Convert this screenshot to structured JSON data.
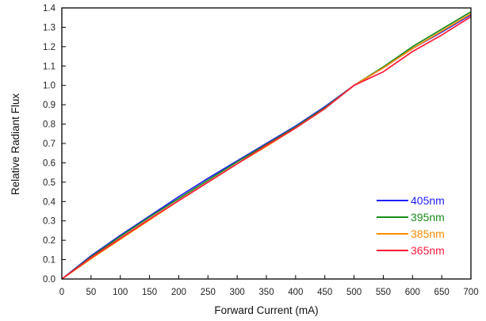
{
  "chart_data": {
    "type": "line",
    "title": "",
    "xlabel": "Forward Current (mA)",
    "ylabel": "Relative Radiant Flux",
    "xlim": [
      0,
      700
    ],
    "ylim": [
      0,
      1.4
    ],
    "x_ticks": [
      "0",
      "50",
      "100",
      "150",
      "200",
      "250",
      "300",
      "350",
      "400",
      "450",
      "500",
      "550",
      "600",
      "650",
      "700"
    ],
    "y_ticks": [
      "0.0",
      "0.1",
      "0.2",
      "0.3",
      "0.4",
      "0.5",
      "0.6",
      "0.7",
      "0.8",
      "0.9",
      "1.0",
      "1.1",
      "1.2",
      "1.3",
      "1.4"
    ],
    "grid": false,
    "legend_position": "bottom-right",
    "x": [
      0,
      50,
      100,
      150,
      200,
      250,
      300,
      350,
      400,
      450,
      500,
      550,
      600,
      650,
      700
    ],
    "series": [
      {
        "name": "405nm",
        "color": "#1f1fff",
        "values": [
          0.0,
          0.12,
          0.225,
          0.325,
          0.425,
          0.52,
          0.61,
          0.7,
          0.79,
          0.89,
          1.0,
          1.09,
          1.19,
          1.275,
          1.365
        ]
      },
      {
        "name": "395nm",
        "color": "#1a8c1a",
        "values": [
          0.0,
          0.115,
          0.22,
          0.32,
          0.415,
          0.51,
          0.605,
          0.695,
          0.785,
          0.885,
          1.0,
          1.095,
          1.2,
          1.29,
          1.38
        ]
      },
      {
        "name": "385nm",
        "color": "#ff8c00",
        "values": [
          0.0,
          0.105,
          0.205,
          0.305,
          0.405,
          0.5,
          0.595,
          0.685,
          0.78,
          0.88,
          1.0,
          1.09,
          1.19,
          1.28,
          1.37
        ]
      },
      {
        "name": "365nm",
        "color": "#ff1a3c",
        "values": [
          0.0,
          0.11,
          0.21,
          0.31,
          0.405,
          0.5,
          0.595,
          0.69,
          0.78,
          0.88,
          1.0,
          1.07,
          1.175,
          1.26,
          1.355
        ]
      }
    ]
  }
}
